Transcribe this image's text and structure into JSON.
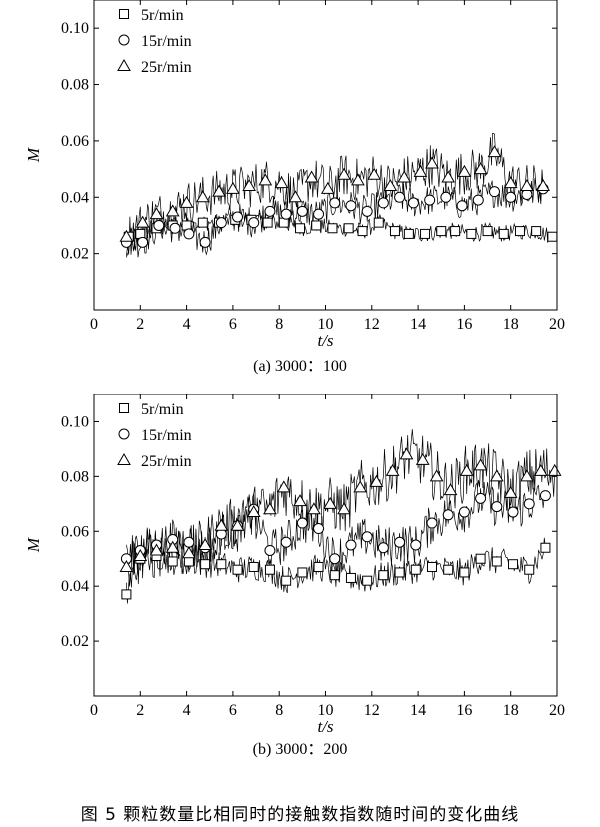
{
  "figure_caption": "图 5   颗粒数量比相同时的接触数指数随时间的变化曲线",
  "chart_data": [
    {
      "type": "line",
      "caption": "(a) 3000：100",
      "xlabel": "t/s",
      "ylabel": "M",
      "xlim": [
        0,
        20
      ],
      "ylim": [
        0,
        0.11
      ],
      "xticks": [
        0,
        2,
        4,
        6,
        8,
        10,
        12,
        14,
        16,
        18,
        20
      ],
      "yticks": [
        0.02,
        0.04,
        0.06,
        0.08,
        0.1
      ],
      "ytick_labels": [
        "0.02",
        "0.04",
        "0.06",
        "0.08",
        "0.10"
      ],
      "legend_position": "top-left",
      "series": [
        {
          "name": "5r/min",
          "marker": "square",
          "x": [
            1.5,
            2.0,
            2.7,
            3.4,
            4.0,
            4.7,
            5.4,
            6.1,
            6.8,
            7.5,
            8.2,
            8.9,
            9.6,
            10.3,
            11.0,
            11.6,
            12.3,
            13.0,
            13.6,
            14.3,
            15.0,
            15.6,
            16.3,
            17.0,
            17.7,
            18.4,
            19.1,
            19.8
          ],
          "y": [
            0.026,
            0.027,
            0.029,
            0.03,
            0.03,
            0.031,
            0.031,
            0.032,
            0.032,
            0.031,
            0.031,
            0.029,
            0.03,
            0.029,
            0.029,
            0.028,
            0.031,
            0.028,
            0.027,
            0.027,
            0.028,
            0.028,
            0.027,
            0.028,
            0.027,
            0.028,
            0.028,
            0.026
          ]
        },
        {
          "name": "15r/min",
          "marker": "circle",
          "x": [
            1.4,
            2.1,
            2.8,
            3.5,
            4.1,
            4.8,
            5.5,
            6.2,
            6.9,
            7.6,
            8.3,
            9.0,
            9.7,
            10.4,
            11.1,
            11.8,
            12.5,
            13.2,
            13.8,
            14.5,
            15.2,
            15.9,
            16.6,
            17.3,
            18.0,
            18.7,
            19.4
          ],
          "y": [
            0.024,
            0.024,
            0.03,
            0.029,
            0.027,
            0.024,
            0.031,
            0.033,
            0.031,
            0.035,
            0.034,
            0.035,
            0.034,
            0.038,
            0.037,
            0.035,
            0.038,
            0.04,
            0.038,
            0.039,
            0.04,
            0.037,
            0.039,
            0.042,
            0.04,
            0.041,
            0.043
          ]
        },
        {
          "name": "25r/min",
          "marker": "triangle",
          "x": [
            1.4,
            2.1,
            2.7,
            3.4,
            4.0,
            4.7,
            5.4,
            6.0,
            6.7,
            7.4,
            8.1,
            8.7,
            9.4,
            10.1,
            10.8,
            11.4,
            12.1,
            12.8,
            13.4,
            14.1,
            14.6,
            15.3,
            16.0,
            16.7,
            17.3,
            18.0,
            18.7,
            19.4
          ],
          "y": [
            0.026,
            0.031,
            0.034,
            0.035,
            0.038,
            0.04,
            0.042,
            0.043,
            0.044,
            0.046,
            0.045,
            0.04,
            0.047,
            0.043,
            0.048,
            0.046,
            0.048,
            0.044,
            0.047,
            0.049,
            0.052,
            0.047,
            0.049,
            0.05,
            0.056,
            0.045,
            0.044,
            0.044
          ]
        }
      ]
    },
    {
      "type": "line",
      "caption": "(b) 3000：200",
      "xlabel": "t/s",
      "ylabel": "M",
      "xlim": [
        0,
        20
      ],
      "ylim": [
        0,
        0.11
      ],
      "xticks": [
        0,
        2,
        4,
        6,
        8,
        10,
        12,
        14,
        16,
        18,
        20
      ],
      "yticks": [
        0.02,
        0.04,
        0.06,
        0.08,
        0.1
      ],
      "ytick_labels": [
        "0.02",
        "0.04",
        "0.06",
        "0.08",
        "0.10"
      ],
      "legend_position": "top-left",
      "series": [
        {
          "name": "5r/min",
          "marker": "square",
          "x": [
            1.4,
            2.0,
            2.7,
            3.4,
            4.1,
            4.8,
            5.5,
            6.2,
            6.9,
            7.6,
            8.3,
            9.0,
            9.7,
            10.4,
            11.1,
            11.8,
            12.5,
            13.2,
            13.9,
            14.6,
            15.3,
            16.0,
            16.7,
            17.4,
            18.1,
            18.8,
            19.5
          ],
          "y": [
            0.037,
            0.05,
            0.051,
            0.049,
            0.049,
            0.048,
            0.048,
            0.046,
            0.047,
            0.046,
            0.042,
            0.045,
            0.047,
            0.044,
            0.043,
            0.042,
            0.044,
            0.045,
            0.046,
            0.047,
            0.046,
            0.045,
            0.05,
            0.049,
            0.048,
            0.046,
            0.054
          ]
        },
        {
          "name": "15r/min",
          "marker": "circle",
          "x": [
            1.4,
            2.0,
            2.7,
            3.4,
            4.1,
            4.8,
            5.5,
            6.2,
            6.9,
            7.6,
            8.3,
            9.0,
            9.7,
            10.4,
            11.1,
            11.8,
            12.5,
            13.2,
            13.9,
            14.6,
            15.3,
            16.0,
            16.7,
            17.4,
            18.1,
            18.8,
            19.5
          ],
          "y": [
            0.05,
            0.053,
            0.055,
            0.057,
            0.056,
            0.054,
            0.059,
            0.062,
            0.068,
            0.053,
            0.056,
            0.063,
            0.061,
            0.05,
            0.055,
            0.058,
            0.054,
            0.056,
            0.055,
            0.063,
            0.066,
            0.067,
            0.072,
            0.069,
            0.067,
            0.07,
            0.073
          ]
        },
        {
          "name": "25r/min",
          "marker": "triangle",
          "x": [
            1.4,
            2.0,
            2.7,
            3.4,
            4.1,
            4.8,
            5.5,
            6.2,
            6.9,
            7.6,
            8.2,
            8.9,
            9.5,
            10.2,
            10.8,
            11.5,
            12.2,
            12.9,
            13.5,
            14.2,
            14.8,
            15.4,
            16.1,
            16.7,
            17.4,
            18.0,
            18.7,
            19.3,
            19.9
          ],
          "y": [
            0.047,
            0.051,
            0.053,
            0.054,
            0.052,
            0.055,
            0.062,
            0.062,
            0.067,
            0.068,
            0.076,
            0.071,
            0.068,
            0.07,
            0.068,
            0.076,
            0.078,
            0.082,
            0.088,
            0.086,
            0.08,
            0.075,
            0.082,
            0.084,
            0.08,
            0.074,
            0.08,
            0.082,
            0.082
          ]
        }
      ]
    }
  ]
}
